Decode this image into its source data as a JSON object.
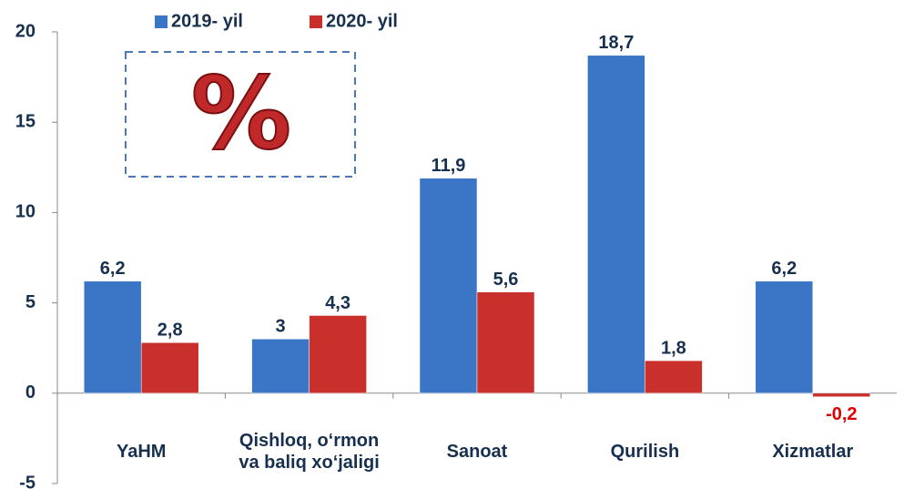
{
  "chart_data": {
    "type": "bar",
    "categories": [
      "YaHM",
      "Qishloq, o‘rmon va baliq xo‘jaligi",
      "Sanoat",
      "Qurilish",
      "Xizmatlar"
    ],
    "series": [
      {
        "name": "2019- yil",
        "color": "#3b76c6",
        "values": [
          6.2,
          3,
          11.9,
          18.7,
          6.2
        ],
        "value_labels": [
          "6,2",
          "3",
          "11,9",
          "18,7",
          "6,2"
        ]
      },
      {
        "name": "2020- yil",
        "color": "#c9302c",
        "values": [
          2.8,
          4.3,
          5.6,
          1.8,
          -0.2
        ],
        "value_labels": [
          "2,8",
          "4,3",
          "5,6",
          "1,8",
          "-0,2"
        ]
      }
    ],
    "annotation": "%",
    "ylim": [
      -5,
      20
    ],
    "yticks": [
      -5,
      0,
      5,
      10,
      15,
      20
    ],
    "grid": false
  }
}
